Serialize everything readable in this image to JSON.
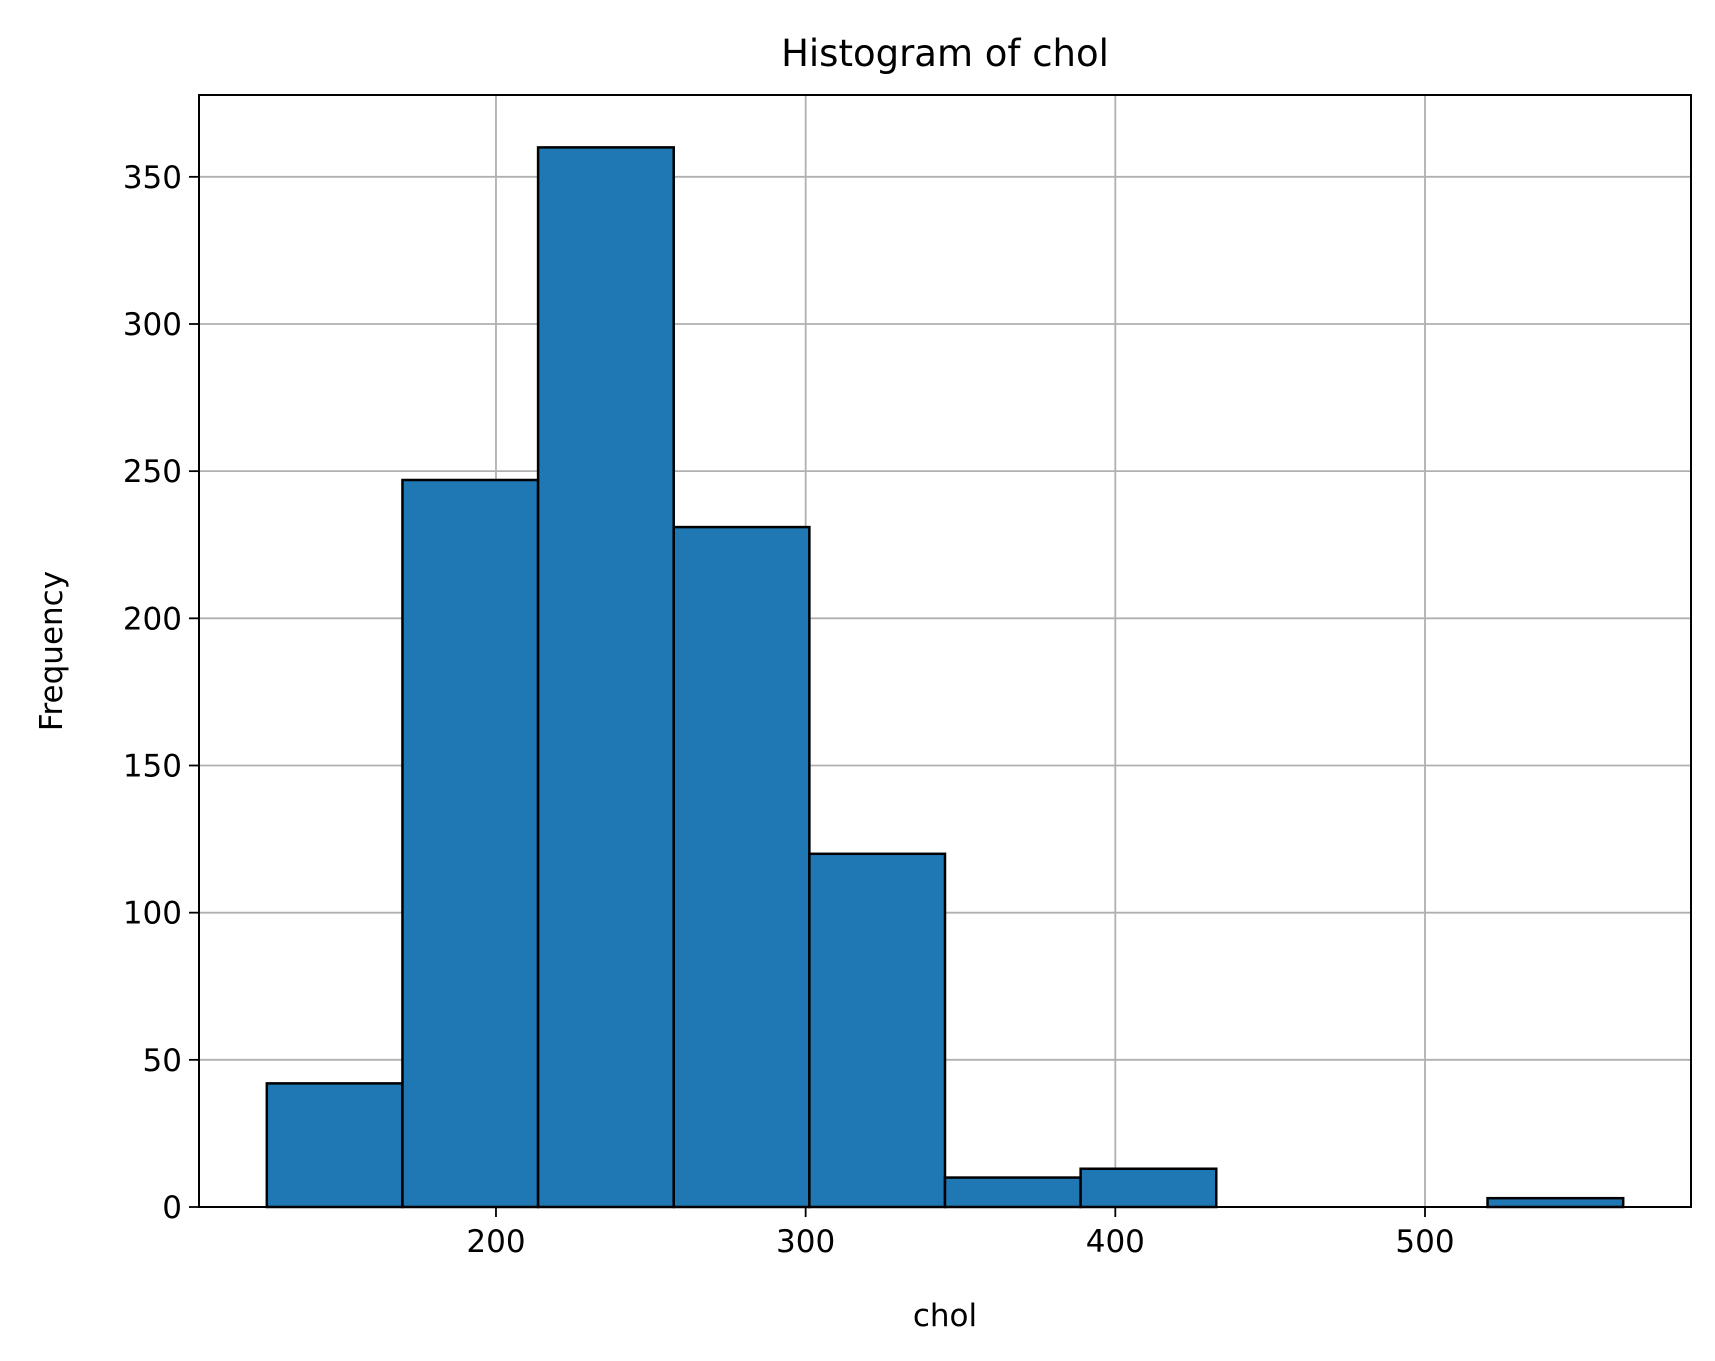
{
  "chart_data": {
    "type": "bar",
    "title": "Histogram of chol",
    "xlabel": "chol",
    "ylabel": "Frequency",
    "bins": [
      {
        "start": 126.0,
        "end": 169.8,
        "count": 42
      },
      {
        "start": 169.8,
        "end": 213.6,
        "count": 247
      },
      {
        "start": 213.6,
        "end": 257.4,
        "count": 360
      },
      {
        "start": 257.4,
        "end": 301.2,
        "count": 231
      },
      {
        "start": 301.2,
        "end": 345.0,
        "count": 120
      },
      {
        "start": 345.0,
        "end": 388.8,
        "count": 10
      },
      {
        "start": 388.8,
        "end": 432.6,
        "count": 13
      },
      {
        "start": 432.6,
        "end": 476.4,
        "count": 0
      },
      {
        "start": 476.4,
        "end": 520.2,
        "count": 0
      },
      {
        "start": 520.2,
        "end": 564.0,
        "count": 3
      }
    ],
    "xticks": [
      200,
      300,
      400,
      500
    ],
    "yticks": [
      0,
      50,
      100,
      150,
      200,
      250,
      300,
      350
    ],
    "xlim": [
      104.1,
      585.9
    ],
    "ylim": [
      0,
      377.8
    ],
    "grid": true,
    "colors": {
      "bar_fill": "#1f77b4",
      "bar_edge": "#000000",
      "grid": "#b0b0b0"
    }
  }
}
